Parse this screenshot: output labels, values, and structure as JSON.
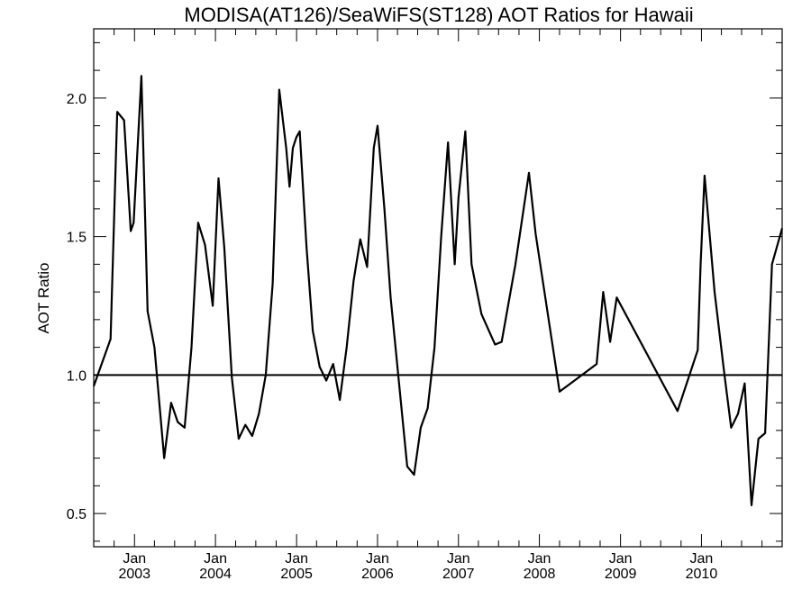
{
  "chart_data": {
    "type": "line",
    "title": "MODISA(AT126)/SeaWiFS(ST128)  AOT Ratios for Hawaii",
    "ylabel": "AOT Ratio",
    "xlabel": "",
    "ylim": [
      0.38,
      2.25
    ],
    "xlim": [
      "2002-07-01",
      "2010-12-31"
    ],
    "y_ticks": [
      {
        "value": 0.5,
        "label": "0.5"
      },
      {
        "value": 1.0,
        "label": "1.0"
      },
      {
        "value": 1.5,
        "label": "1.5"
      },
      {
        "value": 2.0,
        "label": "2.0"
      }
    ],
    "x_ticks": [
      {
        "date": "2003-01-01",
        "month": "Jan",
        "year": "2003"
      },
      {
        "date": "2004-01-01",
        "month": "Jan",
        "year": "2004"
      },
      {
        "date": "2005-01-01",
        "month": "Jan",
        "year": "2005"
      },
      {
        "date": "2006-01-01",
        "month": "Jan",
        "year": "2006"
      },
      {
        "date": "2007-01-01",
        "month": "Jan",
        "year": "2007"
      },
      {
        "date": "2008-01-01",
        "month": "Jan",
        "year": "2008"
      },
      {
        "date": "2009-01-01",
        "month": "Jan",
        "year": "2009"
      },
      {
        "date": "2010-01-01",
        "month": "Jan",
        "year": "2010"
      }
    ],
    "reference_line": 1.0,
    "grid": false,
    "series": [
      {
        "x": [
          "2002-07-01",
          "2002-09-15",
          "2002-10-15",
          "2002-11-15",
          "2002-12-15",
          "2002-12-28",
          "2003-02-01",
          "2003-03-01",
          "2003-04-01",
          "2003-05-15",
          "2003-06-15",
          "2003-07-15",
          "2003-08-15",
          "2003-09-15",
          "2003-10-15",
          "2003-11-15",
          "2003-12-20",
          "2004-01-15",
          "2004-02-10",
          "2004-03-15",
          "2004-04-15",
          "2004-05-15",
          "2004-06-15",
          "2004-07-15",
          "2004-08-15",
          "2004-09-15",
          "2004-10-15",
          "2004-11-15",
          "2004-11-30",
          "2004-12-15",
          "2005-01-01",
          "2005-01-15",
          "2005-02-15",
          "2005-03-15",
          "2005-04-15",
          "2005-05-15",
          "2005-06-15",
          "2005-07-15",
          "2005-08-15",
          "2005-09-15",
          "2005-10-15",
          "2005-11-15",
          "2005-12-15",
          "2006-01-01",
          "2006-02-01",
          "2006-03-01",
          "2006-05-15",
          "2006-06-15",
          "2006-07-15",
          "2006-08-15",
          "2006-09-15",
          "2006-10-15",
          "2006-11-15",
          "2006-12-15",
          "2007-01-01",
          "2007-02-01",
          "2007-03-01",
          "2007-04-15",
          "2007-06-15",
          "2007-07-15",
          "2007-09-15",
          "2007-11-15",
          "2007-12-15",
          "2008-04-01",
          "2008-09-15",
          "2008-10-15",
          "2008-11-15",
          "2008-12-15",
          "2009-09-15",
          "2009-12-15",
          "2009-12-28",
          "2010-01-15",
          "2010-03-01",
          "2010-04-15",
          "2010-05-15",
          "2010-06-15",
          "2010-07-15",
          "2010-08-15",
          "2010-09-15",
          "2010-10-15",
          "2010-11-15",
          "2010-12-31"
        ],
        "y": [
          0.96,
          1.13,
          1.95,
          1.92,
          1.52,
          1.55,
          2.08,
          1.23,
          1.1,
          0.7,
          0.9,
          0.83,
          0.81,
          1.1,
          1.55,
          1.47,
          1.25,
          1.71,
          1.46,
          0.99,
          0.77,
          0.82,
          0.78,
          0.86,
          1.0,
          1.33,
          2.03,
          1.82,
          1.68,
          1.82,
          1.86,
          1.88,
          1.46,
          1.16,
          1.03,
          0.98,
          1.04,
          0.91,
          1.1,
          1.34,
          1.49,
          1.39,
          1.82,
          1.9,
          1.6,
          1.28,
          0.67,
          0.64,
          0.81,
          0.88,
          1.1,
          1.5,
          1.84,
          1.4,
          1.64,
          1.88,
          1.4,
          1.22,
          1.11,
          1.12,
          1.4,
          1.73,
          1.51,
          0.94,
          1.04,
          1.3,
          1.12,
          1.28,
          0.87,
          1.09,
          1.4,
          1.72,
          1.3,
          1.0,
          0.81,
          0.86,
          0.97,
          0.53,
          0.77,
          0.79,
          1.4,
          1.53
        ]
      }
    ]
  }
}
